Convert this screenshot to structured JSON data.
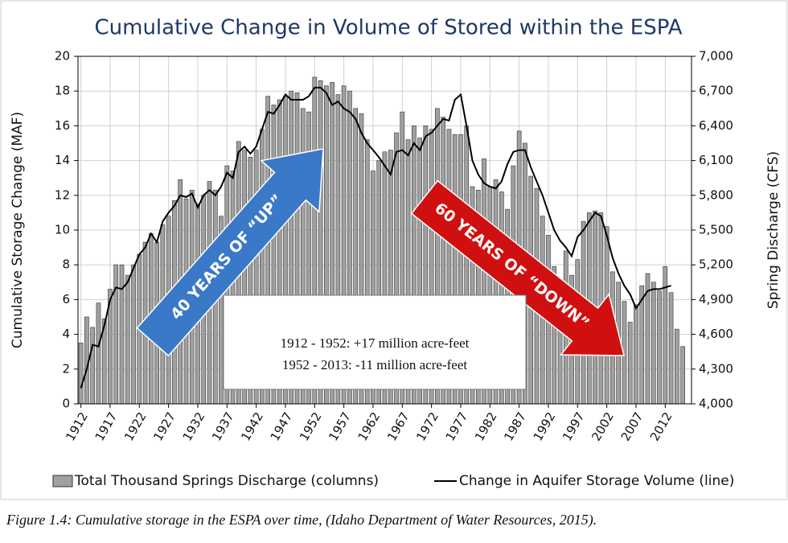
{
  "chart_data": {
    "type": "bar-line",
    "title": "Cumulative Change in Volume of Stored within the ESPA",
    "ylabel": "Cumulative Storage Change (MAF)",
    "y2label": "Spring Discharge (CFS)",
    "x": [
      1912,
      1913,
      1914,
      1915,
      1916,
      1917,
      1918,
      1919,
      1920,
      1921,
      1922,
      1923,
      1924,
      1925,
      1926,
      1927,
      1928,
      1929,
      1930,
      1931,
      1932,
      1933,
      1934,
      1935,
      1936,
      1937,
      1938,
      1939,
      1940,
      1941,
      1942,
      1943,
      1944,
      1945,
      1946,
      1947,
      1948,
      1949,
      1950,
      1951,
      1952,
      1953,
      1954,
      1955,
      1956,
      1957,
      1958,
      1959,
      1960,
      1961,
      1962,
      1963,
      1964,
      1965,
      1966,
      1967,
      1968,
      1969,
      1970,
      1971,
      1972,
      1973,
      1974,
      1975,
      1976,
      1977,
      1978,
      1979,
      1980,
      1981,
      1982,
      1983,
      1984,
      1985,
      1986,
      1987,
      1988,
      1989,
      1990,
      1991,
      1992,
      1993,
      1994,
      1995,
      1996,
      1997,
      1998,
      1999,
      2000,
      2001,
      2002,
      2003,
      2004,
      2005,
      2006,
      2007,
      2008,
      2009,
      2010,
      2011,
      2012,
      2013,
      2014,
      2015
    ],
    "series": [
      {
        "name": "Total Thousand Springs Discharge (columns)",
        "kind": "bar",
        "axis": "y2",
        "color": "#a0a0a0",
        "values": [
          4525,
          4750,
          4660,
          4870,
          4735,
          4990,
          5200,
          5200,
          5110,
          5200,
          5290,
          5395,
          5470,
          5395,
          5545,
          5620,
          5755,
          5935,
          5770,
          5845,
          5725,
          5800,
          5920,
          5845,
          5620,
          6055,
          6010,
          6265,
          6190,
          6130,
          6190,
          6370,
          6655,
          6580,
          6625,
          6655,
          6700,
          6685,
          6550,
          6520,
          6820,
          6790,
          6745,
          6775,
          6670,
          6745,
          6700,
          6550,
          6505,
          6280,
          6010,
          6100,
          6175,
          6190,
          6340,
          6520,
          6280,
          6400,
          6295,
          6400,
          6370,
          6550,
          6475,
          6370,
          6325,
          6325,
          6400,
          5875,
          5845,
          6115,
          5875,
          5935,
          5830,
          5680,
          6055,
          6355,
          6250,
          5965,
          5860,
          5620,
          5455,
          5185,
          5065,
          5320,
          5110,
          5245,
          5575,
          5650,
          5665,
          5650,
          5530,
          5140,
          5050,
          4885,
          4705,
          4855,
          5020,
          5125,
          5050,
          4975,
          5185,
          4960,
          4645,
          4495
        ]
      },
      {
        "name": "Change in Aquifer Storage Volume (line)",
        "kind": "line",
        "color": "#000000",
        "values": [
          0.9,
          2.0,
          3.4,
          3.3,
          4.5,
          6.0,
          6.7,
          6.6,
          7.0,
          7.8,
          8.6,
          9.0,
          9.8,
          9.3,
          10.5,
          11.0,
          11.4,
          12.0,
          11.9,
          12.1,
          11.3,
          12.0,
          12.3,
          12.0,
          12.5,
          13.3,
          13.0,
          14.5,
          14.8,
          14.4,
          14.8,
          15.8,
          16.8,
          16.7,
          17.2,
          17.8,
          17.5,
          17.5,
          17.5,
          17.7,
          18.2,
          18.2,
          17.9,
          17.2,
          17.4,
          17.0,
          16.8,
          16.4,
          15.6,
          15.0,
          14.6,
          14.2,
          13.7,
          13.2,
          14.5,
          14.6,
          14.3,
          15.0,
          14.6,
          15.4,
          15.6,
          16.0,
          16.4,
          16.3,
          17.5,
          17.8,
          16.0,
          14.0,
          13.2,
          12.7,
          12.5,
          12.4,
          12.8,
          13.8,
          14.5,
          14.6,
          14.6,
          13.6,
          12.8,
          12.0,
          11.0,
          10.0,
          9.4,
          9.0,
          8.5,
          9.6,
          10.0,
          10.5,
          11.0,
          10.8,
          9.7,
          8.4,
          7.5,
          6.8,
          6.3,
          5.5,
          6.0,
          6.5,
          6.6,
          6.6,
          6.7,
          6.8,
          null,
          null
        ]
      }
    ],
    "xlim": [
      1911.5,
      2016.5
    ],
    "xticks": [
      1912,
      1917,
      1922,
      1927,
      1932,
      1937,
      1942,
      1947,
      1952,
      1957,
      1962,
      1967,
      1972,
      1977,
      1982,
      1987,
      1992,
      1997,
      2002,
      2007,
      2012
    ],
    "ylim": [
      0,
      20
    ],
    "yticks": [
      0,
      2,
      4,
      6,
      8,
      10,
      12,
      14,
      16,
      18,
      20
    ],
    "y2lim": [
      4000,
      7000
    ],
    "y2ticks": [
      {
        "value": 4000,
        "label": "4,000"
      },
      {
        "value": 4300,
        "label": "4,300"
      },
      {
        "value": 4600,
        "label": "4,600"
      },
      {
        "value": 4900,
        "label": "4,900"
      },
      {
        "value": 5200,
        "label": "5,200"
      },
      {
        "value": 5500,
        "label": "5,500"
      },
      {
        "value": 5800,
        "label": "5,800"
      },
      {
        "value": 6100,
        "label": "6,100"
      },
      {
        "value": 6400,
        "label": "6,400"
      },
      {
        "value": 6700,
        "label": "6,700"
      },
      {
        "value": 7000,
        "label": "7,000"
      }
    ],
    "grid": true,
    "annotations": [
      "40 YEARS OF “UP”",
      "60 YEARS OF “DOWN”",
      "1912 - 1952: +17 million acre-feet",
      "1952 - 2013: -11 million acre-feet"
    ],
    "caption": "Figure 1.4: Cumulative storage in the ESPA over time, (Idaho Department of Water Resources, 2015)."
  }
}
